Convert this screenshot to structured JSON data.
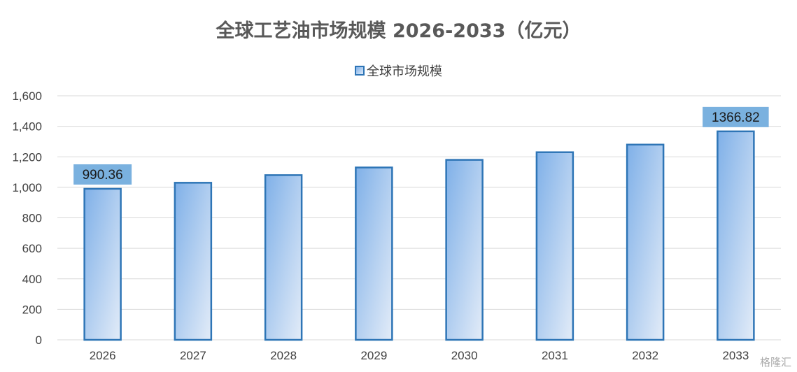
{
  "chart_data": {
    "type": "bar",
    "title": "全球工艺油市场规模 2026-2033（亿元）",
    "categories": [
      "2026",
      "2027",
      "2028",
      "2029",
      "2030",
      "2031",
      "2032",
      "2033"
    ],
    "series": [
      {
        "name": "全球市场规模",
        "values": [
          990.36,
          1030,
          1080,
          1130,
          1180,
          1230,
          1280,
          1366.82
        ]
      }
    ],
    "data_labels": [
      {
        "category": "2026",
        "text": "990.36"
      },
      {
        "category": "2033",
        "text": "1366.82"
      }
    ],
    "y_ticks": [
      "0",
      "200",
      "400",
      "600",
      "800",
      "1,000",
      "1,200",
      "1,400",
      "1,600"
    ],
    "ylim": [
      0,
      1600
    ],
    "grid": true,
    "legend_position": "top"
  },
  "colors": {
    "bar_border": "#2e75b6",
    "bar_fill_dark": "#7fb0e8",
    "bar_fill_light": "#dce9f8",
    "label_box": "#7ab1df",
    "gridline": "#d9d9d9"
  },
  "watermark": "格隆汇"
}
